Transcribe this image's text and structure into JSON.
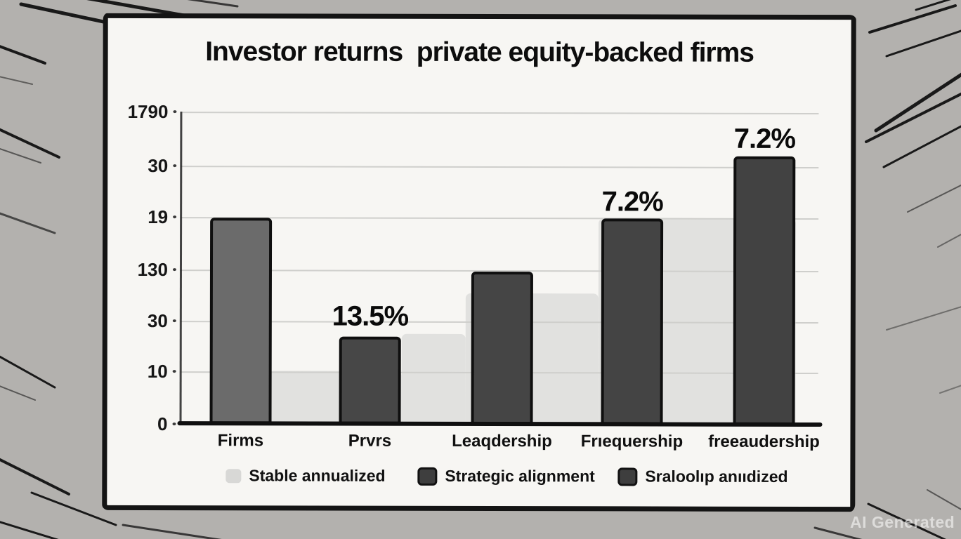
{
  "watermark": "AI Generated",
  "colors": {
    "background": "#b3b1ae",
    "panel": "#f7f6f3",
    "panel_border": "#141414",
    "dark_series": "#474747",
    "light_series": "#e1e1df",
    "gridline": "#cfcfcc",
    "axis": "#0f0f0f"
  },
  "chart_data": {
    "type": "bar",
    "title": "Investor returns  private equity-backed firms",
    "categories": [
      "Firms",
      "Prvrs",
      "Leaqdership",
      "Frıequership",
      "freeaudership"
    ],
    "y_tick_labels_top_to_bottom": [
      "1790",
      "30",
      "19",
      "130",
      "30",
      "10",
      "0"
    ],
    "xlabel": "",
    "ylabel": "",
    "grid": "horizontal",
    "legend_position": "bottom",
    "series": [
      {
        "name": "Strategic alignment",
        "color_per_bar": [
          "#6b6b6b",
          "#474747",
          "#454545",
          "#444444",
          "#424242"
        ],
        "values_pct_of_axis": [
          66,
          28,
          49,
          66,
          86
        ],
        "data_labels": [
          "",
          "13.5%",
          "",
          "7.2%",
          "7.2%"
        ]
      },
      {
        "name": "Stable annualized",
        "color": "#e1e1df",
        "render": "stepped-silhouette",
        "steps_pct_of_axis": [
          17,
          29,
          42,
          66
        ]
      }
    ],
    "legend": [
      {
        "label": "Stable annualized",
        "swatch": "light"
      },
      {
        "label": "Strategic alignment",
        "swatch": "dark"
      },
      {
        "label": "Sraloolıp anııdized",
        "swatch": "dark"
      }
    ]
  }
}
